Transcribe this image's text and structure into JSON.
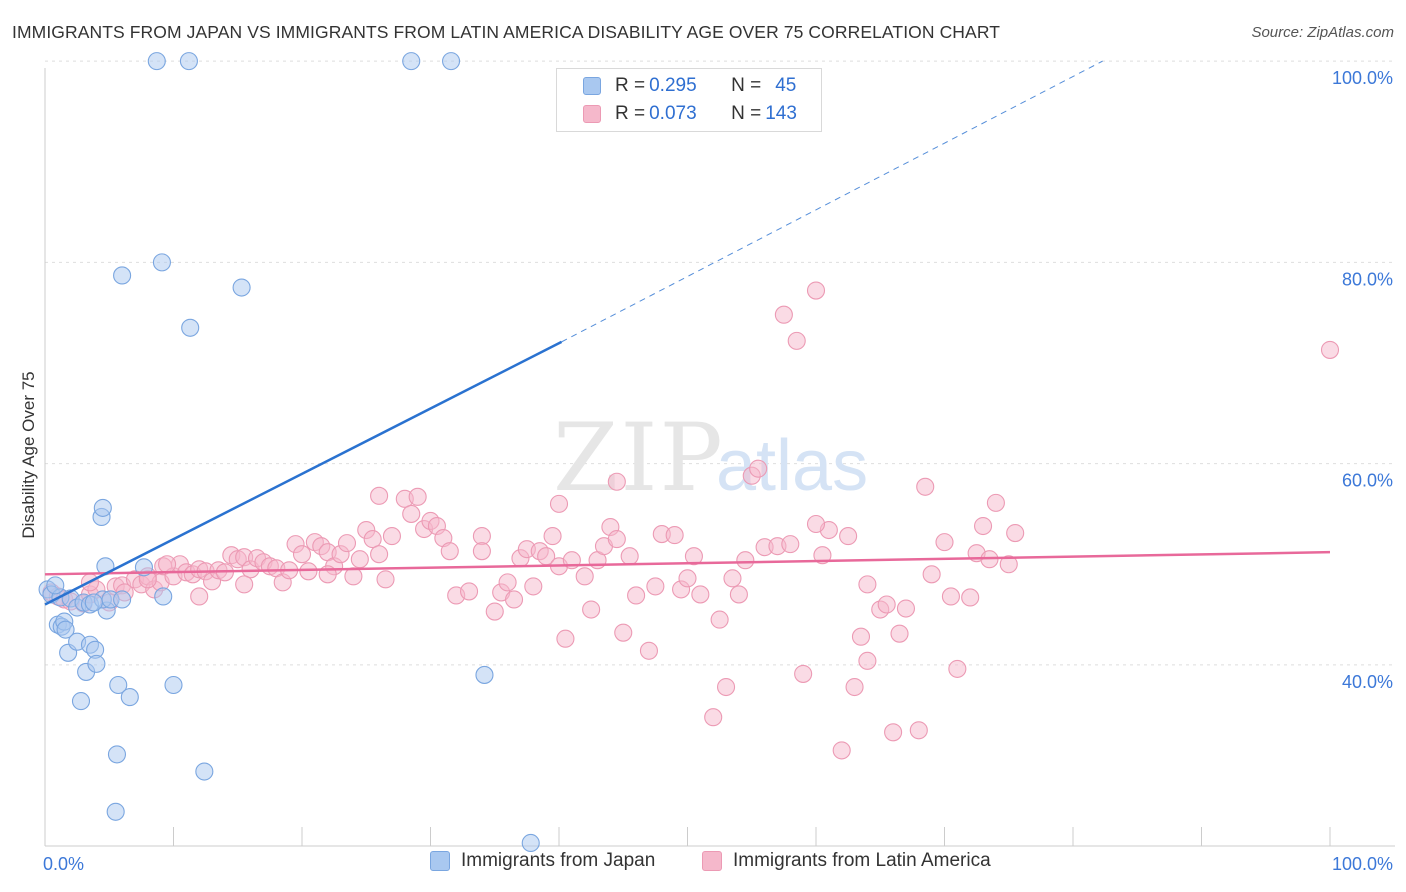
{
  "title": "IMMIGRANTS FROM JAPAN VS IMMIGRANTS FROM LATIN AMERICA DISABILITY AGE OVER 75 CORRELATION CHART",
  "source": "Source: ZipAtlas.com",
  "watermark": {
    "zip": "ZIP",
    "atlas": "atlas"
  },
  "legend": {
    "rows": [
      {
        "r_label": "R = ",
        "r_value": "0.295",
        "n_label": "N = ",
        "n_value": "45"
      },
      {
        "r_label": "R = ",
        "r_value": "0.073",
        "n_label": "N = ",
        "n_value": "143"
      }
    ]
  },
  "bottom_legend": [
    "Immigrants from Japan",
    "Immigrants from Latin America"
  ],
  "colors": {
    "japan_fill": "#a9c8f0",
    "japan_stroke": "#7aa6e0",
    "japan_line": "#2a72d0",
    "latin_fill": "#f5b8cb",
    "latin_stroke": "#ec9ab4",
    "latin_line": "#e8699a",
    "axis_label": "#3c78d8",
    "grid": "#dedede"
  },
  "chart_data": {
    "type": "scatter",
    "title": "IMMIGRANTS FROM JAPAN VS IMMIGRANTS FROM LATIN AMERICA DISABILITY AGE OVER 75 CORRELATION CHART",
    "xlabel": "",
    "ylabel": "Disability Age Over 75",
    "xlim": [
      0,
      100
    ],
    "ylim": [
      22,
      102
    ],
    "x_tick_labels": [
      "0.0%",
      "100.0%"
    ],
    "y_ticks": [
      40,
      60,
      80,
      100
    ],
    "y_tick_labels": [
      "40.0%",
      "60.0%",
      "80.0%",
      "100.0%"
    ],
    "series": [
      {
        "name": "Immigrants from Japan",
        "r": 0.295,
        "n": 45,
        "points": [
          [
            0.2,
            47.5
          ],
          [
            0.5,
            47.0
          ],
          [
            1.2,
            46.7
          ],
          [
            2.0,
            46.6
          ],
          [
            2.5,
            45.7
          ],
          [
            3.0,
            46.2
          ],
          [
            3.5,
            46.0
          ],
          [
            4.8,
            45.4
          ],
          [
            4.5,
            46.5
          ],
          [
            1.0,
            44.0
          ],
          [
            1.3,
            43.8
          ],
          [
            1.5,
            44.3
          ],
          [
            1.6,
            43.5
          ],
          [
            1.8,
            41.2
          ],
          [
            2.5,
            42.3
          ],
          [
            3.5,
            42.0
          ],
          [
            3.9,
            41.5
          ],
          [
            3.2,
            39.3
          ],
          [
            4.0,
            40.1
          ],
          [
            2.8,
            36.4
          ],
          [
            5.7,
            38.0
          ],
          [
            6.6,
            36.8
          ],
          [
            10.0,
            38.0
          ],
          [
            5.6,
            31.1
          ],
          [
            12.4,
            29.4
          ],
          [
            5.5,
            25.4
          ],
          [
            4.4,
            54.7
          ],
          [
            4.5,
            55.6
          ],
          [
            4.7,
            49.8
          ],
          [
            7.7,
            49.7
          ],
          [
            9.2,
            46.8
          ],
          [
            5.1,
            46.5
          ],
          [
            6.0,
            46.5
          ],
          [
            34.2,
            39.0
          ],
          [
            37.8,
            22.3
          ],
          [
            6.0,
            78.7
          ],
          [
            9.1,
            80.0
          ],
          [
            11.3,
            73.5
          ],
          [
            15.3,
            77.5
          ],
          [
            8.7,
            100.0
          ],
          [
            11.2,
            100.0
          ],
          [
            28.5,
            100.0
          ],
          [
            31.6,
            100.0
          ],
          [
            0.8,
            47.9
          ],
          [
            3.8,
            46.2
          ]
        ],
        "trend": {
          "x": [
            0,
            40.2
          ],
          "y": [
            46.0,
            72.1
          ]
        },
        "trend_extension": {
          "x": [
            40.2,
            82.3
          ],
          "y": [
            72.1,
            100.0
          ]
        }
      },
      {
        "name": "Immigrants from Latin America",
        "r": 0.073,
        "n": 143,
        "points": [
          [
            0.5,
            47.2
          ],
          [
            1.0,
            46.8
          ],
          [
            1.5,
            46.5
          ],
          [
            2.0,
            46.3
          ],
          [
            3.0,
            46.1
          ],
          [
            3.5,
            47.0
          ],
          [
            4.0,
            47.5
          ],
          [
            5.0,
            46.2
          ],
          [
            5.5,
            47.8
          ],
          [
            6.0,
            47.9
          ],
          [
            6.2,
            47.2
          ],
          [
            7.0,
            48.5
          ],
          [
            7.5,
            48.0
          ],
          [
            8.0,
            48.8
          ],
          [
            8.5,
            47.5
          ],
          [
            9.0,
            48.2
          ],
          [
            9.2,
            49.8
          ],
          [
            10.0,
            48.8
          ],
          [
            10.5,
            50.0
          ],
          [
            11.0,
            49.2
          ],
          [
            11.5,
            49.0
          ],
          [
            12.0,
            49.5
          ],
          [
            12.5,
            49.3
          ],
          [
            13.0,
            48.3
          ],
          [
            13.5,
            49.4
          ],
          [
            14.0,
            49.2
          ],
          [
            14.5,
            50.9
          ],
          [
            15.0,
            50.5
          ],
          [
            15.5,
            50.7
          ],
          [
            16.0,
            49.5
          ],
          [
            16.5,
            50.6
          ],
          [
            17.0,
            50.2
          ],
          [
            17.5,
            49.8
          ],
          [
            18.0,
            49.6
          ],
          [
            18.5,
            48.2
          ],
          [
            19.0,
            49.4
          ],
          [
            19.5,
            52.0
          ],
          [
            20.0,
            51.0
          ],
          [
            20.5,
            49.3
          ],
          [
            21.0,
            52.2
          ],
          [
            21.5,
            51.8
          ],
          [
            22.0,
            51.2
          ],
          [
            22.5,
            49.8
          ],
          [
            23.0,
            51.0
          ],
          [
            23.5,
            52.1
          ],
          [
            24.0,
            48.8
          ],
          [
            24.5,
            50.5
          ],
          [
            25.0,
            53.4
          ],
          [
            25.5,
            52.5
          ],
          [
            26.0,
            51.0
          ],
          [
            26.5,
            48.5
          ],
          [
            27.0,
            52.8
          ],
          [
            28.0,
            56.5
          ],
          [
            28.5,
            55.0
          ],
          [
            29.0,
            56.7
          ],
          [
            29.5,
            53.5
          ],
          [
            30.0,
            54.3
          ],
          [
            30.5,
            53.8
          ],
          [
            31.0,
            52.6
          ],
          [
            32.0,
            46.9
          ],
          [
            33.0,
            47.3
          ],
          [
            34.0,
            52.8
          ],
          [
            35.0,
            45.3
          ],
          [
            35.5,
            47.2
          ],
          [
            36.0,
            48.2
          ],
          [
            36.5,
            46.5
          ],
          [
            37.0,
            50.6
          ],
          [
            37.5,
            51.5
          ],
          [
            38.0,
            47.8
          ],
          [
            38.5,
            51.3
          ],
          [
            39.0,
            50.8
          ],
          [
            39.5,
            52.8
          ],
          [
            40.0,
            49.8
          ],
          [
            40.5,
            42.6
          ],
          [
            41.0,
            50.4
          ],
          [
            42.0,
            48.8
          ],
          [
            42.5,
            45.5
          ],
          [
            43.0,
            50.4
          ],
          [
            43.5,
            51.8
          ],
          [
            44.0,
            53.7
          ],
          [
            44.5,
            52.5
          ],
          [
            45.0,
            43.2
          ],
          [
            45.5,
            50.8
          ],
          [
            46.0,
            46.9
          ],
          [
            47.0,
            41.4
          ],
          [
            47.5,
            47.8
          ],
          [
            48.0,
            53.0
          ],
          [
            49.0,
            52.9
          ],
          [
            49.5,
            47.5
          ],
          [
            50.0,
            48.6
          ],
          [
            50.5,
            50.8
          ],
          [
            51.0,
            47.0
          ],
          [
            52.0,
            34.8
          ],
          [
            52.5,
            44.5
          ],
          [
            53.0,
            37.8
          ],
          [
            53.5,
            48.6
          ],
          [
            54.0,
            47.0
          ],
          [
            54.5,
            50.4
          ],
          [
            55.0,
            58.8
          ],
          [
            55.5,
            59.5
          ],
          [
            56.0,
            51.7
          ],
          [
            57.0,
            51.8
          ],
          [
            57.5,
            74.8
          ],
          [
            58.0,
            52.0
          ],
          [
            58.5,
            72.2
          ],
          [
            59.0,
            39.1
          ],
          [
            60.0,
            77.2
          ],
          [
            60.5,
            50.9
          ],
          [
            61.0,
            53.4
          ],
          [
            62.0,
            31.5
          ],
          [
            62.5,
            52.8
          ],
          [
            63.0,
            37.8
          ],
          [
            63.5,
            42.8
          ],
          [
            64.0,
            40.4
          ],
          [
            65.0,
            45.5
          ],
          [
            65.5,
            46.0
          ],
          [
            66.0,
            33.3
          ],
          [
            66.5,
            43.1
          ],
          [
            67.0,
            45.6
          ],
          [
            68.0,
            33.5
          ],
          [
            68.5,
            57.7
          ],
          [
            69.0,
            49.0
          ],
          [
            70.0,
            52.2
          ],
          [
            70.5,
            46.8
          ],
          [
            71.0,
            39.6
          ],
          [
            72.0,
            46.7
          ],
          [
            72.5,
            51.1
          ],
          [
            73.0,
            53.8
          ],
          [
            73.5,
            50.5
          ],
          [
            74.0,
            56.1
          ],
          [
            75.0,
            50.0
          ],
          [
            75.5,
            53.1
          ],
          [
            100.0,
            71.3
          ],
          [
            60.0,
            54.0
          ],
          [
            64.0,
            48.0
          ],
          [
            40.0,
            56.0
          ],
          [
            22.0,
            49.0
          ],
          [
            26.0,
            56.8
          ],
          [
            34.0,
            51.3
          ],
          [
            31.5,
            51.3
          ],
          [
            15.5,
            48.0
          ],
          [
            9.5,
            50.0
          ],
          [
            44.5,
            58.2
          ],
          [
            8.0,
            48.5
          ],
          [
            3.5,
            48.2
          ],
          [
            12.0,
            46.8
          ]
        ],
        "trend": {
          "x": [
            0,
            100
          ],
          "y": [
            49.0,
            51.2
          ]
        }
      }
    ]
  }
}
